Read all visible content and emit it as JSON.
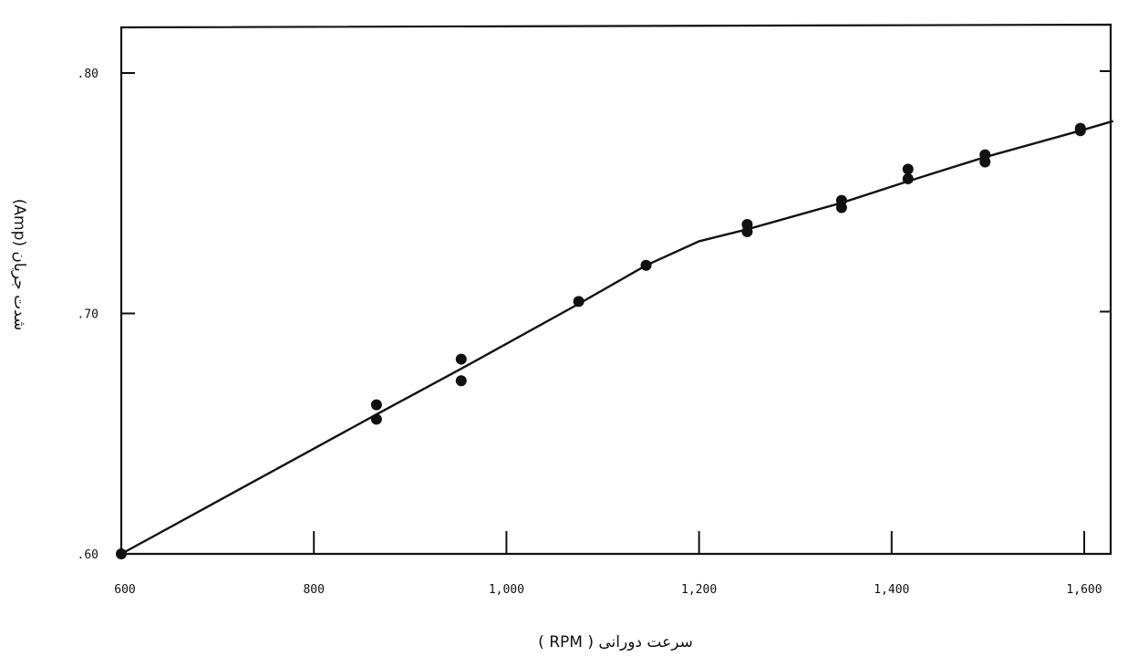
{
  "chart_data": {
    "type": "scatter",
    "title": "",
    "xlabel": "سرعت دورانی  ( RPM )",
    "ylabel": "شدت جریان (Amp)",
    "xlim": [
      600,
      1630
    ],
    "ylim": [
      0.6,
      0.82
    ],
    "x_ticks": [
      600,
      800,
      1000,
      1200,
      1400,
      1600
    ],
    "x_tick_labels": [
      "600",
      "800",
      "1,000",
      "1,200",
      "1,400",
      "1,600"
    ],
    "y_ticks": [
      0.6,
      0.7,
      0.8
    ],
    "y_tick_labels": [
      ".60",
      ".70",
      ".80"
    ],
    "grid": false,
    "series": [
      {
        "kind": "points",
        "x": [
          600,
          865,
          865,
          953,
          953,
          1075,
          1145,
          1250,
          1250,
          1348,
          1348,
          1417,
          1417,
          1497,
          1497,
          1596,
          1596
        ],
        "y": [
          0.6,
          0.662,
          0.656,
          0.681,
          0.672,
          0.705,
          0.72,
          0.737,
          0.734,
          0.747,
          0.744,
          0.76,
          0.756,
          0.766,
          0.763,
          0.777,
          0.776
        ]
      },
      {
        "kind": "line",
        "x": [
          600,
          865,
          953,
          1075,
          1145,
          1200,
          1250,
          1348,
          1417,
          1497,
          1596,
          1630
        ],
        "y": [
          0.6,
          0.658,
          0.677,
          0.704,
          0.72,
          0.73,
          0.735,
          0.746,
          0.755,
          0.765,
          0.776,
          0.78
        ]
      }
    ]
  }
}
